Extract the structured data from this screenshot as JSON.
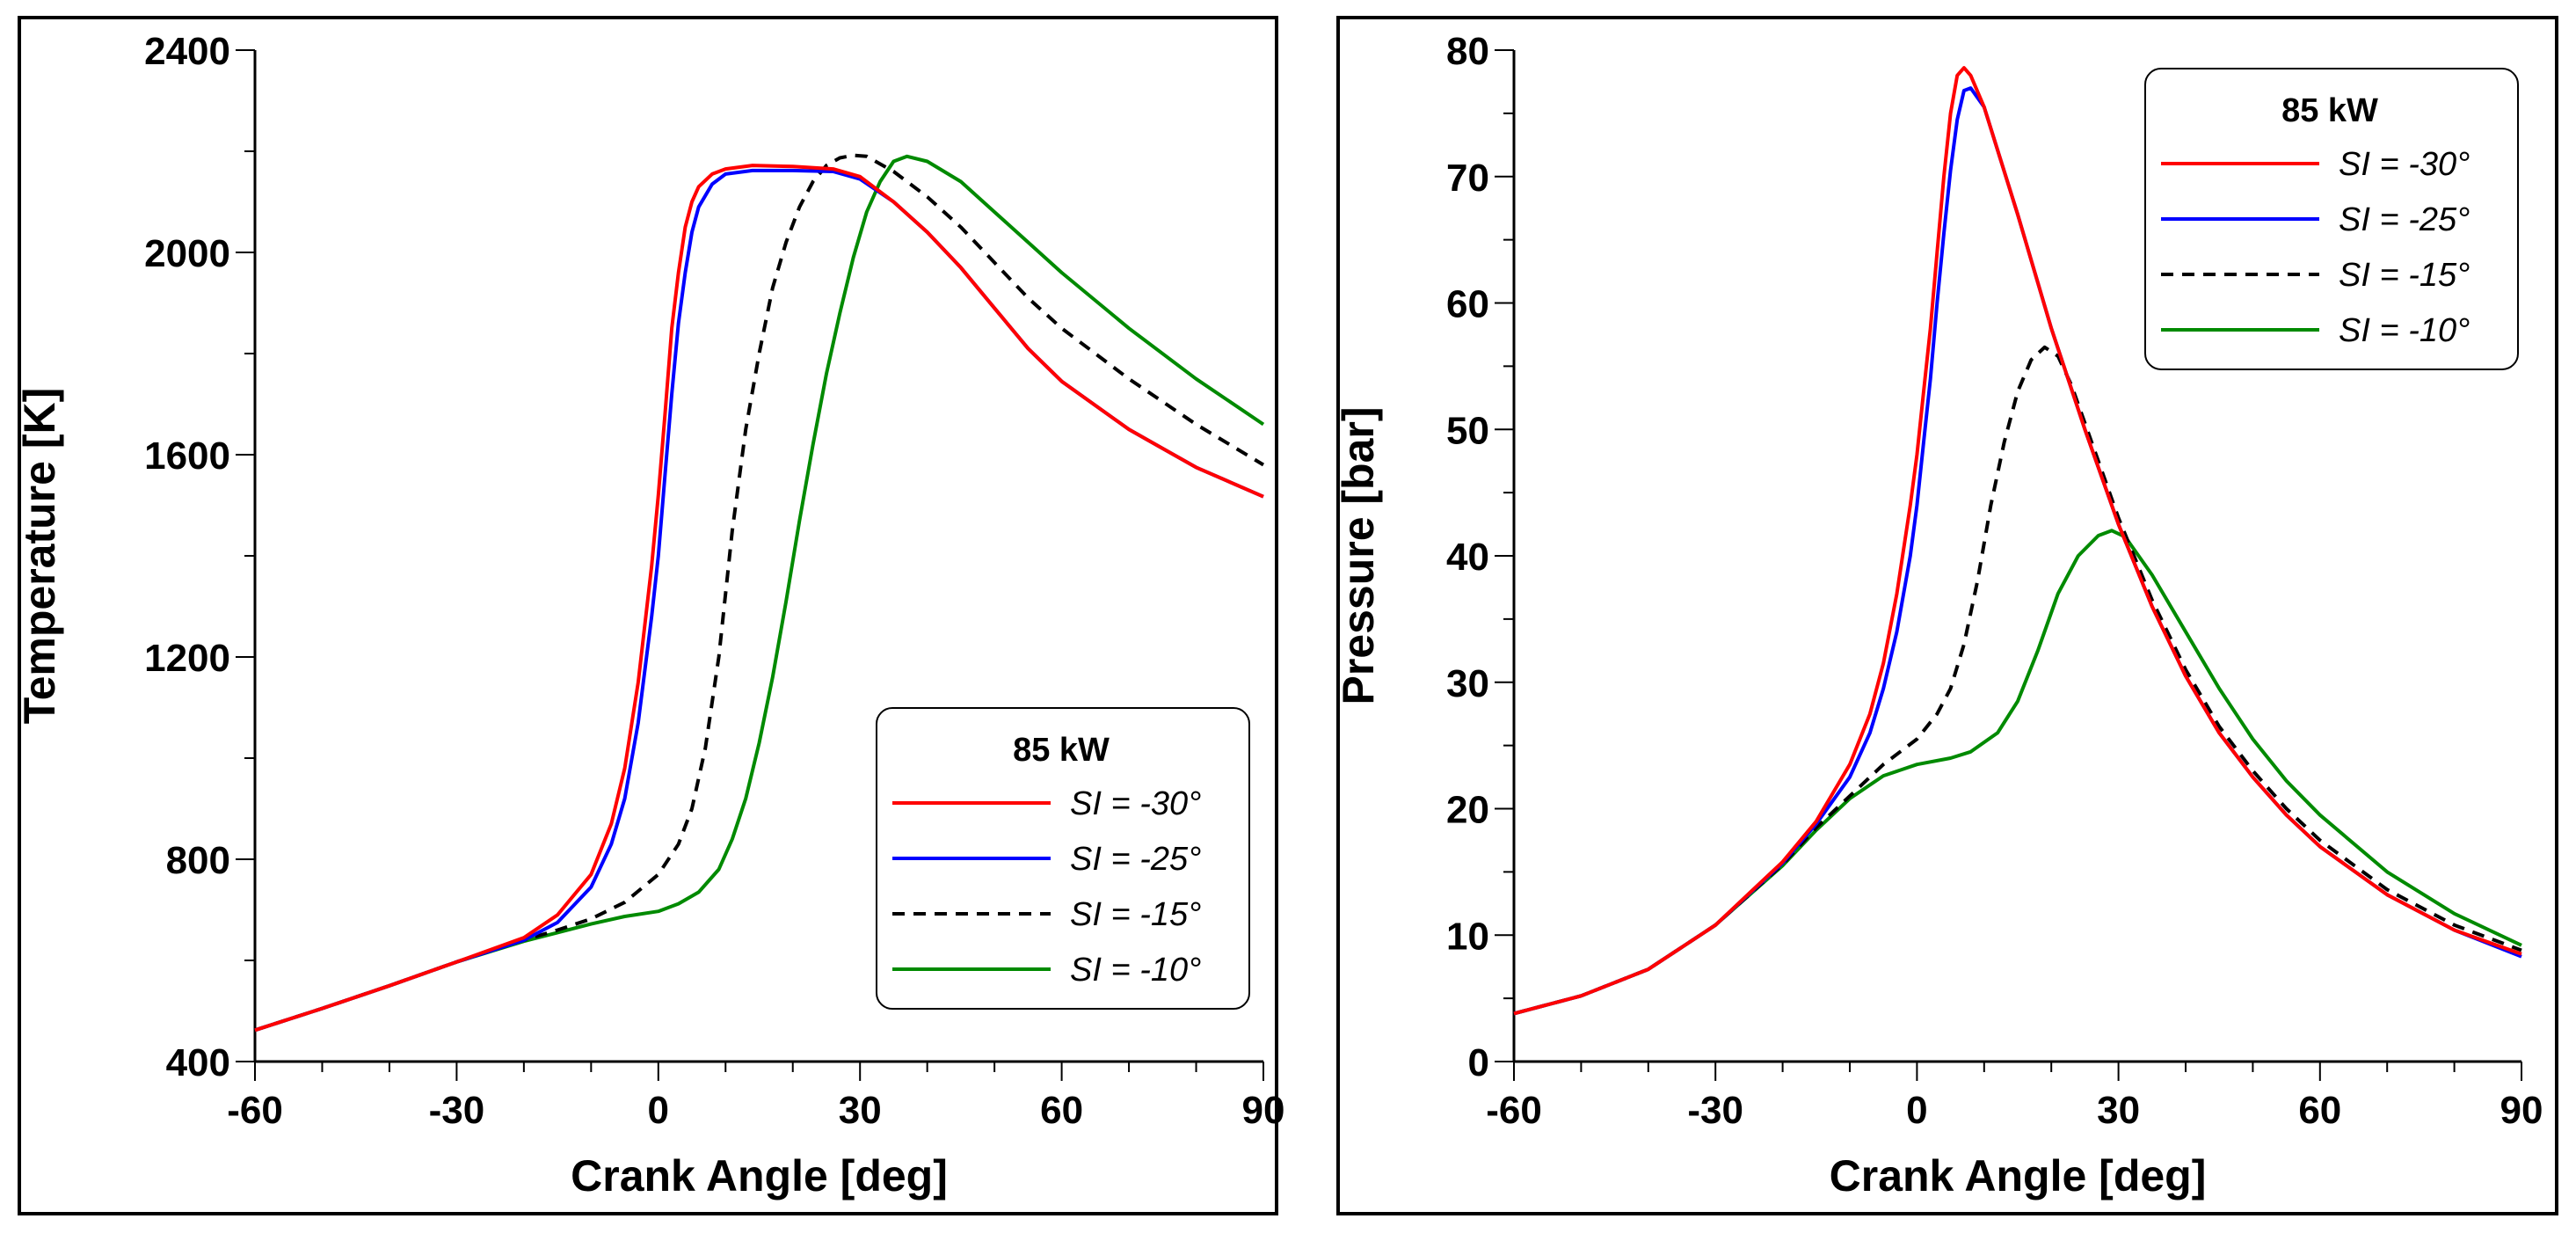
{
  "chart_data": [
    {
      "type": "line",
      "xlabel": "Crank Angle [deg]",
      "ylabel": "Temperature [K]",
      "xlim": [
        -60,
        90
      ],
      "ylim": [
        400,
        2400
      ],
      "x_ticks": [
        -60,
        -30,
        0,
        30,
        60,
        90
      ],
      "x_minor_step": 10,
      "y_ticks": [
        400,
        800,
        1200,
        1600,
        2000,
        2400
      ],
      "y_minor_step": 200,
      "legend": {
        "title": "85 kW",
        "position": "bottom-right"
      },
      "grid": false,
      "series": [
        {
          "name": "SI = -30°",
          "color": "#ff0000",
          "dash": "solid",
          "points": [
            [
              -60,
              462
            ],
            [
              -50,
              505
            ],
            [
              -40,
              550
            ],
            [
              -30,
              597
            ],
            [
              -20,
              645
            ],
            [
              -15,
              690
            ],
            [
              -10,
              770
            ],
            [
              -7,
              870
            ],
            [
              -5,
              980
            ],
            [
              -3,
              1150
            ],
            [
              -1,
              1380
            ],
            [
              0,
              1520
            ],
            [
              1,
              1680
            ],
            [
              2,
              1850
            ],
            [
              3,
              1960
            ],
            [
              4,
              2050
            ],
            [
              5,
              2100
            ],
            [
              6,
              2130
            ],
            [
              8,
              2155
            ],
            [
              10,
              2165
            ],
            [
              14,
              2172
            ],
            [
              20,
              2170
            ],
            [
              26,
              2165
            ],
            [
              30,
              2150
            ],
            [
              35,
              2100
            ],
            [
              40,
              2040
            ],
            [
              45,
              1970
            ],
            [
              50,
              1890
            ],
            [
              55,
              1810
            ],
            [
              60,
              1745
            ],
            [
              70,
              1650
            ],
            [
              80,
              1575
            ],
            [
              90,
              1517
            ]
          ]
        },
        {
          "name": "SI = -25°",
          "color": "#0000ff",
          "dash": "solid",
          "points": [
            [
              -60,
              462
            ],
            [
              -50,
              505
            ],
            [
              -40,
              550
            ],
            [
              -30,
              597
            ],
            [
              -20,
              640
            ],
            [
              -15,
              675
            ],
            [
              -10,
              745
            ],
            [
              -7,
              830
            ],
            [
              -5,
              920
            ],
            [
              -3,
              1070
            ],
            [
              -1,
              1280
            ],
            [
              0,
              1400
            ],
            [
              1,
              1560
            ],
            [
              2,
              1720
            ],
            [
              3,
              1860
            ],
            [
              4,
              1960
            ],
            [
              5,
              2040
            ],
            [
              6,
              2090
            ],
            [
              8,
              2135
            ],
            [
              10,
              2155
            ],
            [
              14,
              2162
            ],
            [
              20,
              2162
            ],
            [
              26,
              2160
            ],
            [
              30,
              2145
            ],
            [
              35,
              2100
            ],
            [
              40,
              2040
            ],
            [
              45,
              1970
            ],
            [
              50,
              1890
            ],
            [
              55,
              1810
            ],
            [
              60,
              1745
            ],
            [
              70,
              1650
            ],
            [
              80,
              1575
            ],
            [
              90,
              1517
            ]
          ]
        },
        {
          "name": "SI = -15°",
          "color": "#000000",
          "dash": "dashed",
          "points": [
            [
              -60,
              462
            ],
            [
              -50,
              505
            ],
            [
              -40,
              550
            ],
            [
              -30,
              597
            ],
            [
              -20,
              640
            ],
            [
              -15,
              660
            ],
            [
              -10,
              682
            ],
            [
              -5,
              715
            ],
            [
              0,
              770
            ],
            [
              3,
              830
            ],
            [
              5,
              900
            ],
            [
              7,
              1020
            ],
            [
              9,
              1200
            ],
            [
              11,
              1450
            ],
            [
              13,
              1650
            ],
            [
              15,
              1800
            ],
            [
              17,
              1930
            ],
            [
              19,
              2020
            ],
            [
              21,
              2090
            ],
            [
              23,
              2140
            ],
            [
              25,
              2172
            ],
            [
              27,
              2187
            ],
            [
              29,
              2192
            ],
            [
              31,
              2190
            ],
            [
              35,
              2160
            ],
            [
              40,
              2110
            ],
            [
              45,
              2050
            ],
            [
              50,
              1980
            ],
            [
              55,
              1910
            ],
            [
              60,
              1850
            ],
            [
              70,
              1750
            ],
            [
              80,
              1660
            ],
            [
              90,
              1580
            ]
          ]
        },
        {
          "name": "SI = -10°",
          "color": "#008a00",
          "dash": "solid",
          "points": [
            [
              -60,
              462
            ],
            [
              -50,
              505
            ],
            [
              -40,
              550
            ],
            [
              -30,
              597
            ],
            [
              -20,
              638
            ],
            [
              -15,
              655
            ],
            [
              -10,
              672
            ],
            [
              -5,
              687
            ],
            [
              0,
              697
            ],
            [
              3,
              712
            ],
            [
              6,
              735
            ],
            [
              9,
              780
            ],
            [
              11,
              840
            ],
            [
              13,
              920
            ],
            [
              15,
              1030
            ],
            [
              17,
              1160
            ],
            [
              19,
              1310
            ],
            [
              21,
              1470
            ],
            [
              23,
              1620
            ],
            [
              25,
              1760
            ],
            [
              27,
              1880
            ],
            [
              29,
              1990
            ],
            [
              31,
              2080
            ],
            [
              33,
              2140
            ],
            [
              35,
              2180
            ],
            [
              37,
              2190
            ],
            [
              40,
              2180
            ],
            [
              45,
              2140
            ],
            [
              50,
              2080
            ],
            [
              55,
              2020
            ],
            [
              60,
              1960
            ],
            [
              70,
              1850
            ],
            [
              80,
              1750
            ],
            [
              90,
              1660
            ]
          ]
        }
      ]
    },
    {
      "type": "line",
      "xlabel": "Crank Angle [deg]",
      "ylabel": "Pressure [bar]",
      "xlim": [
        -60,
        90
      ],
      "ylim": [
        0,
        80
      ],
      "x_ticks": [
        -60,
        -30,
        0,
        30,
        60,
        90
      ],
      "x_minor_step": 10,
      "y_ticks": [
        0,
        10,
        20,
        30,
        40,
        50,
        60,
        70,
        80
      ],
      "y_minor_step": 5,
      "legend": {
        "title": "85 kW",
        "position": "top-right"
      },
      "grid": false,
      "series": [
        {
          "name": "SI = -30°",
          "color": "#ff0000",
          "dash": "solid",
          "points": [
            [
              -60,
              3.8
            ],
            [
              -50,
              5.2
            ],
            [
              -40,
              7.3
            ],
            [
              -30,
              10.8
            ],
            [
              -20,
              15.8
            ],
            [
              -15,
              19
            ],
            [
              -10,
              23.5
            ],
            [
              -7,
              27.5
            ],
            [
              -5,
              31.5
            ],
            [
              -3,
              37
            ],
            [
              -1,
              44
            ],
            [
              0,
              48
            ],
            [
              1,
              53
            ],
            [
              2,
              58
            ],
            [
              3,
              64
            ],
            [
              4,
              70
            ],
            [
              5,
              75
            ],
            [
              6,
              78
            ],
            [
              7,
              78.6
            ],
            [
              8,
              78
            ],
            [
              10,
              75.5
            ],
            [
              15,
              67
            ],
            [
              20,
              58
            ],
            [
              25,
              50
            ],
            [
              30,
              42.5
            ],
            [
              35,
              36
            ],
            [
              40,
              30.5
            ],
            [
              45,
              26
            ],
            [
              50,
              22.5
            ],
            [
              55,
              19.5
            ],
            [
              60,
              17
            ],
            [
              70,
              13.2
            ],
            [
              80,
              10.4
            ],
            [
              90,
              8.5
            ]
          ]
        },
        {
          "name": "SI = -25°",
          "color": "#0000ff",
          "dash": "solid",
          "points": [
            [
              -60,
              3.8
            ],
            [
              -50,
              5.2
            ],
            [
              -40,
              7.3
            ],
            [
              -30,
              10.8
            ],
            [
              -20,
              15.7
            ],
            [
              -15,
              18.8
            ],
            [
              -10,
              22.5
            ],
            [
              -7,
              26
            ],
            [
              -5,
              29.5
            ],
            [
              -3,
              34
            ],
            [
              -1,
              40
            ],
            [
              0,
              44
            ],
            [
              1,
              49
            ],
            [
              2,
              54
            ],
            [
              3,
              60
            ],
            [
              4,
              65.5
            ],
            [
              5,
              70.5
            ],
            [
              6,
              74.5
            ],
            [
              7,
              76.8
            ],
            [
              8,
              77
            ],
            [
              10,
              75.5
            ],
            [
              15,
              67
            ],
            [
              20,
              58
            ],
            [
              25,
              50
            ],
            [
              30,
              42.5
            ],
            [
              35,
              36
            ],
            [
              40,
              30.5
            ],
            [
              45,
              26
            ],
            [
              50,
              22.5
            ],
            [
              55,
              19.5
            ],
            [
              60,
              17
            ],
            [
              70,
              13.2
            ],
            [
              80,
              10.4
            ],
            [
              90,
              8.3
            ]
          ]
        },
        {
          "name": "SI = -15°",
          "color": "#000000",
          "dash": "dashed",
          "points": [
            [
              -60,
              3.8
            ],
            [
              -50,
              5.2
            ],
            [
              -40,
              7.3
            ],
            [
              -30,
              10.8
            ],
            [
              -20,
              15.6
            ],
            [
              -15,
              18.5
            ],
            [
              -10,
              21
            ],
            [
              -5,
              23.5
            ],
            [
              0,
              25.5
            ],
            [
              3,
              27.5
            ],
            [
              5,
              29.5
            ],
            [
              7,
              33
            ],
            [
              9,
              38
            ],
            [
              11,
              44
            ],
            [
              13,
              49
            ],
            [
              15,
              53
            ],
            [
              17,
              55.5
            ],
            [
              19,
              56.5
            ],
            [
              21,
              55.8
            ],
            [
              23,
              53.5
            ],
            [
              25,
              50.5
            ],
            [
              27,
              47.5
            ],
            [
              30,
              43
            ],
            [
              35,
              36.5
            ],
            [
              40,
              31
            ],
            [
              45,
              26.5
            ],
            [
              50,
              23
            ],
            [
              55,
              20
            ],
            [
              60,
              17.5
            ],
            [
              70,
              13.6
            ],
            [
              80,
              10.8
            ],
            [
              90,
              8.8
            ]
          ]
        },
        {
          "name": "SI = -10°",
          "color": "#008a00",
          "dash": "solid",
          "points": [
            [
              -60,
              3.8
            ],
            [
              -50,
              5.2
            ],
            [
              -40,
              7.3
            ],
            [
              -30,
              10.8
            ],
            [
              -20,
              15.5
            ],
            [
              -15,
              18.3
            ],
            [
              -10,
              20.8
            ],
            [
              -5,
              22.6
            ],
            [
              0,
              23.5
            ],
            [
              5,
              24
            ],
            [
              8,
              24.5
            ],
            [
              12,
              26
            ],
            [
              15,
              28.5
            ],
            [
              18,
              32.5
            ],
            [
              21,
              37
            ],
            [
              24,
              40
            ],
            [
              27,
              41.6
            ],
            [
              29,
              42
            ],
            [
              31,
              41.5
            ],
            [
              35,
              38.5
            ],
            [
              40,
              34
            ],
            [
              45,
              29.5
            ],
            [
              50,
              25.5
            ],
            [
              55,
              22.2
            ],
            [
              60,
              19.5
            ],
            [
              70,
              15
            ],
            [
              80,
              11.7
            ],
            [
              90,
              9.2
            ]
          ]
        }
      ]
    }
  ]
}
